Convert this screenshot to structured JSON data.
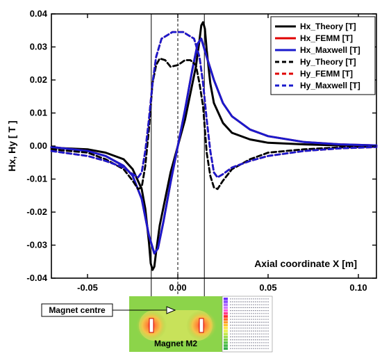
{
  "chart_data": {
    "type": "line",
    "title": "",
    "xlabel": "Axial coordinate X [m]",
    "ylabel": "Hx, Hy [ T ]",
    "xlim": [
      -0.07,
      0.11
    ],
    "ylim": [
      -0.04,
      0.04
    ],
    "x_ticks": [
      "-0.05",
      "0.00",
      "0.05",
      "0.10"
    ],
    "y_ticks": [
      "0.04",
      "0.03",
      "0.02",
      "0.01",
      "0.00",
      "-0.01",
      "-0.02",
      "-0.03",
      "-0.04"
    ],
    "grid": false,
    "legend_position": "top-right",
    "series": [
      {
        "name": "Hx_Theory [T]",
        "color": "#000000",
        "dash": "solid",
        "x": [
          -0.07,
          -0.05,
          -0.04,
          -0.03,
          -0.025,
          -0.02,
          -0.018,
          -0.016,
          -0.015,
          -0.014,
          -0.013,
          -0.012,
          -0.01,
          -0.007,
          -0.004,
          0.0,
          0.004,
          0.007,
          0.01,
          0.012,
          0.013,
          0.014,
          0.015,
          0.016,
          0.018,
          0.02,
          0.025,
          0.03,
          0.04,
          0.05,
          0.07,
          0.09,
          0.11
        ],
        "y": [
          -0.0005,
          -0.001,
          -0.002,
          -0.004,
          -0.007,
          -0.013,
          -0.019,
          -0.029,
          -0.0355,
          -0.0375,
          -0.0365,
          -0.032,
          -0.024,
          -0.016,
          -0.008,
          0.0,
          0.008,
          0.016,
          0.024,
          0.032,
          0.0365,
          0.0375,
          0.0355,
          0.029,
          0.019,
          0.013,
          0.007,
          0.004,
          0.002,
          0.001,
          0.0005,
          0.0002,
          0.0001
        ]
      },
      {
        "name": "Hx_FEMM [T]",
        "color": "#e00000",
        "dash": "solid",
        "x": [
          -0.07,
          -0.05,
          -0.04,
          -0.03,
          -0.025,
          -0.02,
          -0.016,
          -0.013,
          -0.011,
          -0.008,
          -0.004,
          0.0,
          0.004,
          0.008,
          0.011,
          0.013,
          0.016,
          0.02,
          0.025,
          0.03,
          0.04,
          0.05,
          0.07,
          0.09,
          0.11
        ],
        "y": [
          -0.0003,
          -0.0015,
          -0.003,
          -0.006,
          -0.009,
          -0.016,
          -0.027,
          -0.0325,
          -0.031,
          -0.023,
          -0.011,
          0.0,
          0.011,
          0.023,
          0.031,
          0.0325,
          0.027,
          0.02,
          0.013,
          0.009,
          0.005,
          0.003,
          0.0012,
          0.0005,
          0.0002
        ]
      },
      {
        "name": "Hx_Maxwell [T]",
        "color": "#1a1acc",
        "dash": "solid",
        "x": [
          -0.07,
          -0.05,
          -0.04,
          -0.03,
          -0.025,
          -0.02,
          -0.016,
          -0.013,
          -0.011,
          -0.008,
          -0.004,
          0.0,
          0.004,
          0.008,
          0.011,
          0.013,
          0.016,
          0.02,
          0.025,
          0.03,
          0.04,
          0.05,
          0.07,
          0.09,
          0.11
        ],
        "y": [
          -0.0003,
          -0.0015,
          -0.003,
          -0.006,
          -0.009,
          -0.016,
          -0.027,
          -0.0325,
          -0.031,
          -0.023,
          -0.011,
          0.0,
          0.011,
          0.023,
          0.031,
          0.0325,
          0.027,
          0.02,
          0.013,
          0.009,
          0.005,
          0.003,
          0.0012,
          0.0005,
          0.0002
        ]
      },
      {
        "name": "Hy_Theory [T]",
        "color": "#000000",
        "dash": "dashed",
        "x": [
          -0.07,
          -0.05,
          -0.04,
          -0.03,
          -0.025,
          -0.022,
          -0.02,
          -0.018,
          -0.016,
          -0.015,
          -0.014,
          -0.012,
          -0.01,
          -0.007,
          -0.004,
          0.0,
          0.004,
          0.007,
          0.01,
          0.012,
          0.014,
          0.015,
          0.016,
          0.018,
          0.02,
          0.022,
          0.025,
          0.03,
          0.04,
          0.05,
          0.07,
          0.09,
          0.11
        ],
        "y": [
          -0.001,
          -0.002,
          -0.004,
          -0.007,
          -0.0105,
          -0.013,
          -0.0125,
          -0.006,
          0.005,
          0.012,
          0.019,
          0.0245,
          0.0265,
          0.026,
          0.024,
          0.0245,
          0.026,
          0.026,
          0.0245,
          0.019,
          0.012,
          0.005,
          -0.002,
          -0.009,
          -0.0125,
          -0.013,
          -0.0105,
          -0.007,
          -0.004,
          -0.002,
          -0.001,
          -0.0004,
          -0.0002
        ]
      },
      {
        "name": "Hy_FEMM [T]",
        "color": "#e00000",
        "dash": "dashed",
        "x": [
          -0.07,
          -0.05,
          -0.04,
          -0.03,
          -0.025,
          -0.022,
          -0.02,
          -0.018,
          -0.016,
          -0.014,
          -0.012,
          -0.009,
          -0.006,
          -0.003,
          0.0,
          0.003,
          0.006,
          0.009,
          0.012,
          0.014,
          0.016,
          0.018,
          0.02,
          0.022,
          0.025,
          0.03,
          0.04,
          0.05,
          0.07,
          0.09,
          0.11
        ],
        "y": [
          -0.0015,
          -0.003,
          -0.0045,
          -0.0065,
          -0.0085,
          -0.0095,
          -0.008,
          -0.0015,
          0.008,
          0.019,
          0.027,
          0.0325,
          0.0335,
          0.0345,
          0.0345,
          0.0345,
          0.0335,
          0.0325,
          0.027,
          0.019,
          0.008,
          -0.0015,
          -0.008,
          -0.0095,
          -0.0085,
          -0.0065,
          -0.0045,
          -0.003,
          -0.0015,
          -0.0007,
          -0.0003
        ]
      },
      {
        "name": "Hy_Maxwell [T]",
        "color": "#1a1acc",
        "dash": "dashed",
        "x": [
          -0.07,
          -0.05,
          -0.04,
          -0.03,
          -0.025,
          -0.022,
          -0.02,
          -0.018,
          -0.016,
          -0.014,
          -0.012,
          -0.009,
          -0.006,
          -0.003,
          0.0,
          0.003,
          0.006,
          0.009,
          0.012,
          0.014,
          0.016,
          0.018,
          0.02,
          0.022,
          0.025,
          0.03,
          0.04,
          0.05,
          0.07,
          0.09,
          0.11
        ],
        "y": [
          -0.0015,
          -0.003,
          -0.0045,
          -0.0065,
          -0.0085,
          -0.0095,
          -0.008,
          -0.0015,
          0.008,
          0.019,
          0.027,
          0.0325,
          0.0335,
          0.0345,
          0.0345,
          0.0345,
          0.0335,
          0.0325,
          0.027,
          0.019,
          0.008,
          -0.0015,
          -0.008,
          -0.0095,
          -0.0085,
          -0.0065,
          -0.0045,
          -0.003,
          -0.0015,
          -0.0007,
          -0.0003
        ]
      }
    ],
    "vertical_lines": [
      {
        "x": -0.0147,
        "style": "solid"
      },
      {
        "x": 0.0,
        "style": "dashed"
      },
      {
        "x": 0.0147,
        "style": "solid"
      }
    ],
    "annotations": {
      "callout": "Magnet centre",
      "inset_label": "Magnet M2"
    }
  }
}
